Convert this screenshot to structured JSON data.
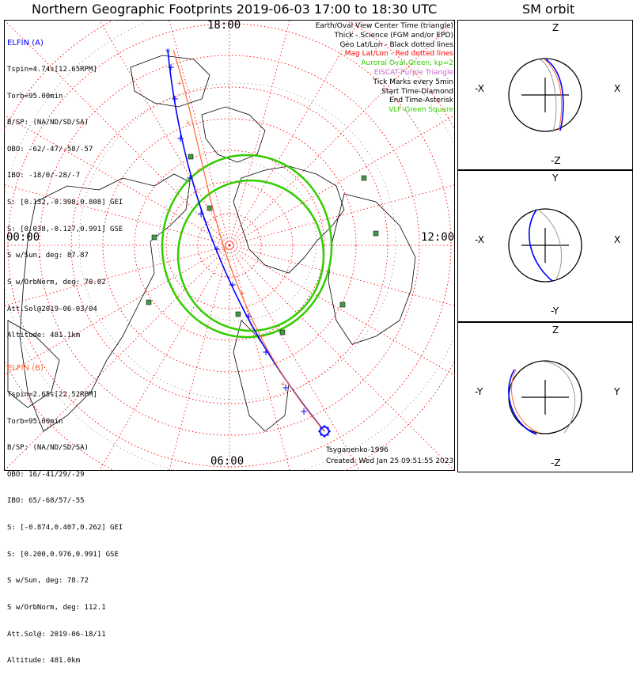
{
  "title": "Northern Geographic Footprints 2019-06-03 17:00 to 18:30 UTC",
  "sm_title": "SM orbit",
  "colors": {
    "elfin_a": "#0000ff",
    "elfin_b": "#ff6633",
    "aurora": "#33cc00",
    "grid": "#ff0000",
    "vlf": "#449944",
    "eiscat": "#cc66cc",
    "shadow": "#999999"
  },
  "time_labels": {
    "top": "18:00",
    "left": "00:00",
    "right": "12:00",
    "bottom": "06:00"
  },
  "elfin_a": {
    "name": "ELFIN (A)",
    "lines": [
      "Tspin=4.74s[12.65RPM]",
      "Torb=95.00min",
      "B/SP: (NA/ND/SD/SA)",
      "OBO: -62/-47/-58/-57",
      "IBO: -18/0/-28/-7",
      "S: [0.132,-0.398,0.808] GEI",
      "S: [0.038,-0.127,0.991] GSE",
      "S w/Sun, deg: 87.87",
      "S w/OrbNorm, deg: 70.02",
      "Att.Sol@2019-06-03/04",
      "Altitude: 481.1km"
    ]
  },
  "elfin_b": {
    "name": "ELFIN (B)",
    "lines": [
      "Tspin=2.65s[22.52RPM]",
      "Torb=95.00min",
      "B/SP: (NA/ND/SD/SA)",
      "OBO: 16/-41/29/-29",
      "IBO: 65/-68/57/-55",
      "S: [-0.874,0.407,0.262] GEI",
      "S: [0.200,0.976,0.991] GSE",
      "S w/Sun, deg: 78.72",
      "S w/OrbNorm, deg: 112.1",
      "Att.Sol@: 2019-06-18/11",
      "Altitude: 481.0km"
    ]
  },
  "legend": [
    {
      "text": "Earth/Oval View Center Time (triangle)",
      "color": "#000000"
    },
    {
      "text": "Thick - Science (FGM and/or EPD)",
      "color": "#000000"
    },
    {
      "text": "Geo Lat/Lon - Black dotted lines",
      "color": "#000000"
    },
    {
      "text": "Mag Lat/Lon - Red dotted lines",
      "color": "#ff0000"
    },
    {
      "text": "Auroral Oval-Green, kp=2",
      "color": "#33cc00"
    },
    {
      "text": "EISCAT-Purple Triangle",
      "color": "#cc66cc"
    },
    {
      "text": "Tick Marks every 5min",
      "color": "#000000"
    },
    {
      "text": "Start Time-Diamond",
      "color": "#000000"
    },
    {
      "text": "End Time-Asterisk",
      "color": "#000000"
    },
    {
      "text": "VLF-Green Square",
      "color": "#33cc00"
    }
  ],
  "credit_model": "Tsyganenko-1996",
  "credit_created": "Created: Wed Jan 25 09:51:55 2023",
  "orbit_panels": [
    {
      "name": "xz",
      "top": "Z",
      "bottom": "-Z",
      "left": "-X",
      "right": "X"
    },
    {
      "name": "xy",
      "top": "Y",
      "bottom": "-Y",
      "left": "-X",
      "right": "X"
    },
    {
      "name": "yz",
      "top": "Z",
      "bottom": "-Z",
      "left": "-Y",
      "right": "Y"
    }
  ]
}
